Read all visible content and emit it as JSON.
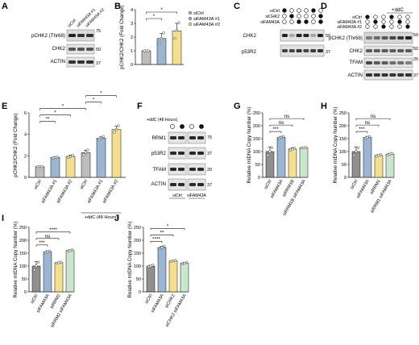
{
  "figure": {
    "panels": {
      "A": {
        "label": "A",
        "lanes": [
          "siCtrl",
          "siFAM43A #1",
          "siFAM43A #2"
        ],
        "rows": [
          "pCHK2 (Thr68)",
          "CHK2",
          "ACTIN"
        ],
        "mw": [
          "75",
          "50",
          "37"
        ]
      },
      "C": {
        "label": "C",
        "conditions": [
          "siCtrl",
          "siCHK2",
          "siFAM43A"
        ],
        "rows": [
          "CHK2",
          "p53R2"
        ],
        "mw": [
          "50",
          "37"
        ]
      },
      "D": {
        "label": "D",
        "header": "+ddC",
        "conditions": [
          "siCtrl",
          "siFAM43A #1",
          "siFAM43A #2"
        ],
        "rows": [
          "pCHK2 (Thr68)",
          "CHK2",
          "TFAM",
          "ACTIN"
        ],
        "mw": [
          "50",
          "50",
          "25",
          "37"
        ]
      },
      "F": {
        "label": "F",
        "header": "+ddC (48 Hours)",
        "rows": [
          "RRM1",
          "p53R2",
          "TFAM",
          "ACTIN"
        ],
        "mw": [
          "75",
          "37",
          "20",
          "37"
        ],
        "groups": [
          "siCtrl",
          "siFAM43A"
        ]
      }
    }
  },
  "chart_data": [
    {
      "panel": "B",
      "type": "bar",
      "categories": [
        "",
        "",
        ""
      ],
      "values": [
        1.0,
        1.9,
        2.45
      ],
      "errors": [
        0.03,
        0.35,
        0.55
      ],
      "points": [
        [
          1.0,
          1.0,
          1.0
        ],
        [
          1.55,
          1.9,
          2.3
        ],
        [
          1.9,
          2.5,
          3.05
        ]
      ],
      "colors": [
        "#bdbdbd",
        "#9ab6d3",
        "#f3df8e"
      ],
      "ylabel": "pCHK2/CHK2 (Fold Change)",
      "ylim": [
        0,
        4
      ],
      "yticks": [
        "0",
        "1",
        "2",
        "3",
        "4"
      ],
      "legend": [
        "siCtrl",
        "siFAM43A #1",
        "siFAM43A #2"
      ],
      "significance": [
        {
          "from": 0,
          "to": 1,
          "label": "*"
        },
        {
          "from": 0,
          "to": 2,
          "label": "*"
        }
      ]
    },
    {
      "panel": "E",
      "type": "bar",
      "categories": [
        "siCtrl",
        "siFAM43A #1",
        "siFAM43A #2",
        "siCtrl",
        "siFAM43A #1",
        "siFAM43A #2"
      ],
      "values": [
        1.0,
        1.85,
        1.95,
        2.3,
        3.65,
        4.45
      ],
      "errors": [
        0.03,
        0.07,
        0.12,
        0.2,
        0.12,
        0.3
      ],
      "points": [
        [
          1.0,
          1.0,
          1.0
        ],
        [
          1.8,
          1.85,
          1.9
        ],
        [
          1.85,
          1.95,
          2.05
        ],
        [
          2.1,
          2.3,
          2.55
        ],
        [
          3.55,
          3.65,
          3.8
        ],
        [
          4.2,
          4.45,
          4.8
        ]
      ],
      "colors": [
        "#bdbdbd",
        "#9ab6d3",
        "#f3df8e",
        "#bdbdbd",
        "#9ab6d3",
        "#f3df8e"
      ],
      "ylabel": "pCHK2/CHK2 (Fold Change)",
      "ylim": [
        0,
        6
      ],
      "yticks": [
        "0",
        "2",
        "4",
        "6"
      ],
      "group_label": "+ddC (48 Hours)",
      "significance": [
        {
          "from": 0,
          "to": 1,
          "label": "**"
        },
        {
          "from": 0,
          "to": 2,
          "label": "*"
        },
        {
          "from": 0,
          "to": 3,
          "label": "*"
        },
        {
          "from": 3,
          "to": 4,
          "label": "*"
        },
        {
          "from": 3,
          "to": 5,
          "label": "*"
        }
      ]
    },
    {
      "panel": "G",
      "type": "bar",
      "categories": [
        "siCtrl",
        "siFAM43A",
        "siRRM1B",
        "siRRM1B siFAM43A"
      ],
      "values": [
        100,
        155,
        110,
        115
      ],
      "errors": [
        18,
        4,
        5,
        2
      ],
      "points": [
        [
          85,
          100,
          115
        ],
        [
          152,
          155,
          158
        ],
        [
          106,
          110,
          113
        ],
        [
          114,
          115,
          116
        ]
      ],
      "colors": [
        "#8f8f8f",
        "#9ab6d3",
        "#f3df8e",
        "#c8e6c9"
      ],
      "ylabel": "Relative mtDNA Copy Number (%)",
      "ylim": [
        0,
        250
      ],
      "yticks": [
        "0",
        "50",
        "100",
        "150",
        "200",
        "250"
      ],
      "significance": [
        {
          "from": 0,
          "to": 1,
          "label": "***"
        },
        {
          "from": 0,
          "to": 2,
          "label": "ns"
        },
        {
          "from": 0,
          "to": 3,
          "label": "ns"
        }
      ]
    },
    {
      "panel": "H",
      "type": "bar",
      "categories": [
        "siCtrl",
        "siFAM43A",
        "siRRM1",
        "siRRM1 siFAM43A"
      ],
      "values": [
        100,
        155,
        85,
        90
      ],
      "errors": [
        17,
        4,
        3,
        3
      ],
      "points": [
        [
          85,
          100,
          115
        ],
        [
          152,
          155,
          158
        ],
        [
          82,
          85,
          88
        ],
        [
          87,
          90,
          93
        ]
      ],
      "colors": [
        "#8f8f8f",
        "#9ab6d3",
        "#f3df8e",
        "#c8e6c9"
      ],
      "ylabel": "Relative mtDNA Copy Number (%)",
      "ylim": [
        0,
        250
      ],
      "yticks": [
        "0",
        "50",
        "100",
        "150",
        "200",
        "250"
      ],
      "significance": [
        {
          "from": 0,
          "to": 1,
          "label": "***"
        },
        {
          "from": 0,
          "to": 2,
          "label": "ns"
        },
        {
          "from": 0,
          "to": 3,
          "label": "ns"
        }
      ]
    },
    {
      "panel": "I",
      "type": "bar",
      "categories": [
        "siCtrl",
        "siFAM43A",
        "siRRM2",
        "siRRM2 siFAM43A"
      ],
      "values": [
        100,
        155,
        113,
        160
      ],
      "errors": [
        17,
        4,
        2,
        3
      ],
      "points": [
        [
          85,
          100,
          115
        ],
        [
          152,
          155,
          158
        ],
        [
          111,
          113,
          115
        ],
        [
          157,
          160,
          163
        ]
      ],
      "colors": [
        "#8f8f8f",
        "#9ab6d3",
        "#f3df8e",
        "#c8e6c9"
      ],
      "ylabel": "Relative mtDNA Copy Number (%)",
      "ylim": [
        0,
        250
      ],
      "yticks": [
        "0",
        "50",
        "100",
        "150",
        "200",
        "250"
      ],
      "significance": [
        {
          "from": 0,
          "to": 1,
          "label": "***"
        },
        {
          "from": 0,
          "to": 2,
          "label": "ns"
        },
        {
          "from": 0,
          "to": 3,
          "label": "****"
        }
      ]
    },
    {
      "panel": "J",
      "type": "bar",
      "categories": [
        "siCtrl",
        "siFAM43A",
        "siCHK2",
        "siCHK2 siFAM43A"
      ],
      "values": [
        100,
        172,
        120,
        111
      ],
      "errors": [
        3,
        5,
        2,
        3
      ],
      "points": [
        [
          97,
          100,
          103
        ],
        [
          167,
          172,
          177
        ],
        [
          118,
          120,
          122
        ],
        [
          108,
          111,
          114
        ]
      ],
      "colors": [
        "#8f8f8f",
        "#9ab6d3",
        "#f3df8e",
        "#c8e6c9"
      ],
      "ylabel": "Relative mtDNA Copy Number (%)",
      "ylim": [
        0,
        250
      ],
      "yticks": [
        "0",
        "50",
        "100",
        "150",
        "200",
        "250"
      ],
      "significance": [
        {
          "from": 0,
          "to": 1,
          "label": "****"
        },
        {
          "from": 0,
          "to": 2,
          "label": "**"
        },
        {
          "from": 0,
          "to": 3,
          "label": "*"
        }
      ]
    }
  ]
}
